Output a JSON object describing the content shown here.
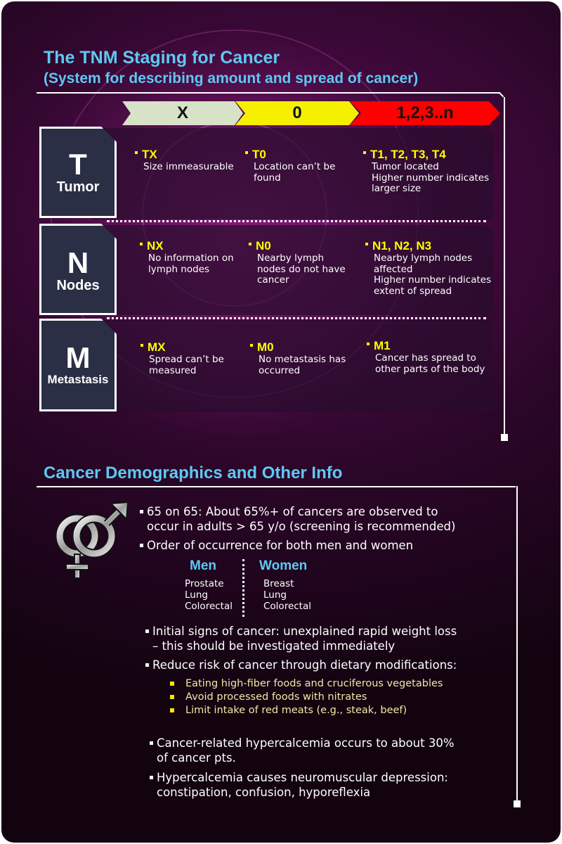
{
  "tnm": {
    "title": "The TNM Staging for Cancer",
    "subtitle": "(System for describing amount and spread of cancer)",
    "headers": [
      "X",
      "0",
      "1,2,3..n"
    ],
    "rows": [
      {
        "letter": "T",
        "name": "Tumor",
        "cells": [
          {
            "title": "TX",
            "text": "Size immeasurable"
          },
          {
            "title": "T0",
            "text": "Location can’t be\nfound"
          },
          {
            "title": "T1, T2, T3, T4",
            "text": "Tumor located\nHigher number indicates\nlarger size"
          }
        ]
      },
      {
        "letter": "N",
        "name": "Nodes",
        "cells": [
          {
            "title": "NX",
            "text": "No information on\nlymph nodes"
          },
          {
            "title": "N0",
            "text": "Nearby lymph\nnodes do not have\ncancer"
          },
          {
            "title": "N1, N2, N3",
            "text": "Nearby lymph nodes\naffected\nHigher number indicates\nextent of spread"
          }
        ]
      },
      {
        "letter": "M",
        "name": "Metastasis",
        "cells": [
          {
            "title": "MX",
            "text": "Spread can’t be\nmeasured"
          },
          {
            "title": "M0",
            "text": "No metastasis has\noccurred"
          },
          {
            "title": "M1",
            "text": "Cancer has spread to\nother parts of the body"
          }
        ]
      }
    ]
  },
  "demographics": {
    "title": "Cancer Demographics and Other Info",
    "bullets": [
      {
        "lines": [
          "65 on 65: About 65%+ of cancers are observed to",
          "occur in adults > 65 y/o (screening is recommended)"
        ]
      },
      {
        "lines": [
          "Order of occurrence for both men and women"
        ]
      },
      {
        "lines": [
          "Initial signs of cancer: unexplained rapid weight loss",
          "– this should be investigated immediately"
        ]
      },
      {
        "lines": [
          "Reduce risk of cancer through dietary modifications:"
        ]
      },
      {
        "lines": [
          "Cancer-related hypercalcemia occurs to about 30%",
          "of cancer pts."
        ]
      },
      {
        "lines": [
          "Hypercalcemia causes neuromuscular depression:",
          "constipation, confusion, hyporeflexia"
        ]
      }
    ],
    "men": {
      "heading": "Men",
      "items": [
        "Prostate",
        "Lung",
        "Colorectal"
      ]
    },
    "women": {
      "heading": "Women",
      "items": [
        "Breast",
        "Lung",
        "Colorectal"
      ]
    },
    "diet_items": [
      "Eating high-fiber foods and cruciferous vegetables",
      "Avoid processed foods with nitrates",
      "Limit intake of red meats (e.g., steak, beef)"
    ],
    "icon": "male-female-symbol-icon"
  },
  "colors": {
    "accent_heading": "#5fc8f2",
    "stage_x": "#d7e2c6",
    "stage_0": "#f4f000",
    "stage_n": "#ff0000",
    "cell_title": "#ffff00"
  }
}
